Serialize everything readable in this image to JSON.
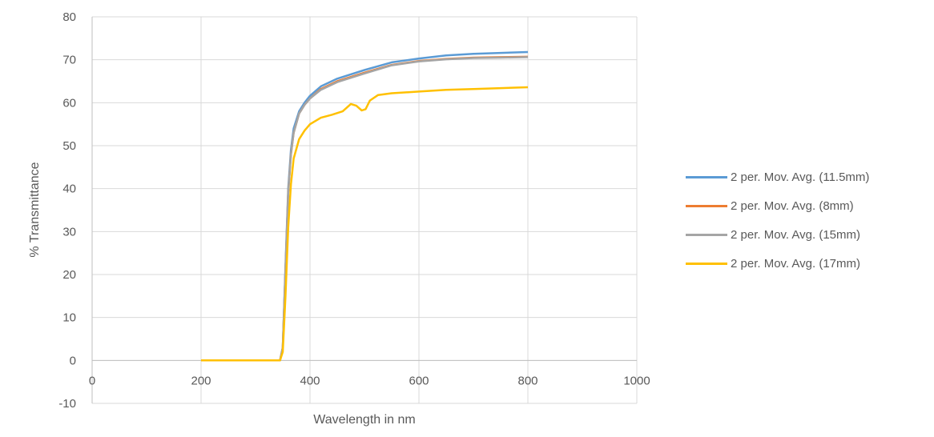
{
  "chart_data": {
    "type": "line",
    "xlabel": "Wavelength in nm",
    "ylabel": "% Transmittance",
    "xlim": [
      0,
      1000
    ],
    "ylim": [
      -10,
      80
    ],
    "x_ticks": [
      "0",
      "200",
      "400",
      "600",
      "800",
      "1000"
    ],
    "y_ticks": [
      "-10",
      "0",
      "10",
      "20",
      "30",
      "40",
      "50",
      "60",
      "70",
      "80"
    ],
    "grid": true,
    "legend_position": "right",
    "series": [
      {
        "name": "2 per. Mov. Avg. (11.5mm)",
        "color": "#5b9bd5",
        "points": [
          [
            200,
            0
          ],
          [
            345,
            0
          ],
          [
            350,
            3
          ],
          [
            355,
            22
          ],
          [
            360,
            40
          ],
          [
            365,
            49
          ],
          [
            370,
            54
          ],
          [
            380,
            58
          ],
          [
            390,
            60
          ],
          [
            400,
            61.6
          ],
          [
            420,
            63.8
          ],
          [
            450,
            65.6
          ],
          [
            500,
            67.6
          ],
          [
            550,
            69.4
          ],
          [
            600,
            70.3
          ],
          [
            650,
            71.0
          ],
          [
            700,
            71.4
          ],
          [
            750,
            71.6
          ],
          [
            800,
            71.8
          ]
        ]
      },
      {
        "name": "2 per. Mov. Avg. (8mm)",
        "color": "#ed7d31",
        "points": [
          [
            200,
            0
          ],
          [
            345,
            0
          ],
          [
            350,
            3
          ],
          [
            355,
            21
          ],
          [
            360,
            39
          ],
          [
            365,
            48
          ],
          [
            370,
            53
          ],
          [
            380,
            57.5
          ],
          [
            390,
            59.5
          ],
          [
            400,
            61
          ],
          [
            420,
            63.2
          ],
          [
            450,
            65
          ],
          [
            500,
            67
          ],
          [
            550,
            68.8
          ],
          [
            600,
            69.7
          ],
          [
            650,
            70.2
          ],
          [
            700,
            70.5
          ],
          [
            750,
            70.6
          ],
          [
            800,
            70.7
          ]
        ]
      },
      {
        "name": "2 per. Mov. Avg. (15mm)",
        "color": "#a5a5a5",
        "points": [
          [
            200,
            0
          ],
          [
            345,
            0
          ],
          [
            350,
            3
          ],
          [
            355,
            21
          ],
          [
            360,
            39
          ],
          [
            365,
            48
          ],
          [
            370,
            53
          ],
          [
            380,
            57.5
          ],
          [
            390,
            59.5
          ],
          [
            400,
            61
          ],
          [
            420,
            63
          ],
          [
            450,
            64.8
          ],
          [
            500,
            66.8
          ],
          [
            550,
            68.7
          ],
          [
            600,
            69.6
          ],
          [
            650,
            70.1
          ],
          [
            700,
            70.4
          ],
          [
            750,
            70.5
          ],
          [
            800,
            70.6
          ]
        ]
      },
      {
        "name": "2 per. Mov. Avg. (17mm)",
        "color": "#ffc000",
        "points": [
          [
            200,
            0
          ],
          [
            345,
            0
          ],
          [
            350,
            2
          ],
          [
            355,
            15
          ],
          [
            360,
            31
          ],
          [
            365,
            41
          ],
          [
            370,
            47
          ],
          [
            380,
            51.5
          ],
          [
            390,
            53.5
          ],
          [
            400,
            55
          ],
          [
            420,
            56.5
          ],
          [
            440,
            57.2
          ],
          [
            460,
            58
          ],
          [
            475,
            59.7
          ],
          [
            485,
            59.3
          ],
          [
            495,
            58.2
          ],
          [
            502,
            58.5
          ],
          [
            510,
            60.5
          ],
          [
            525,
            61.8
          ],
          [
            550,
            62.2
          ],
          [
            600,
            62.6
          ],
          [
            650,
            63
          ],
          [
            700,
            63.2
          ],
          [
            750,
            63.4
          ],
          [
            800,
            63.6
          ]
        ]
      }
    ]
  }
}
